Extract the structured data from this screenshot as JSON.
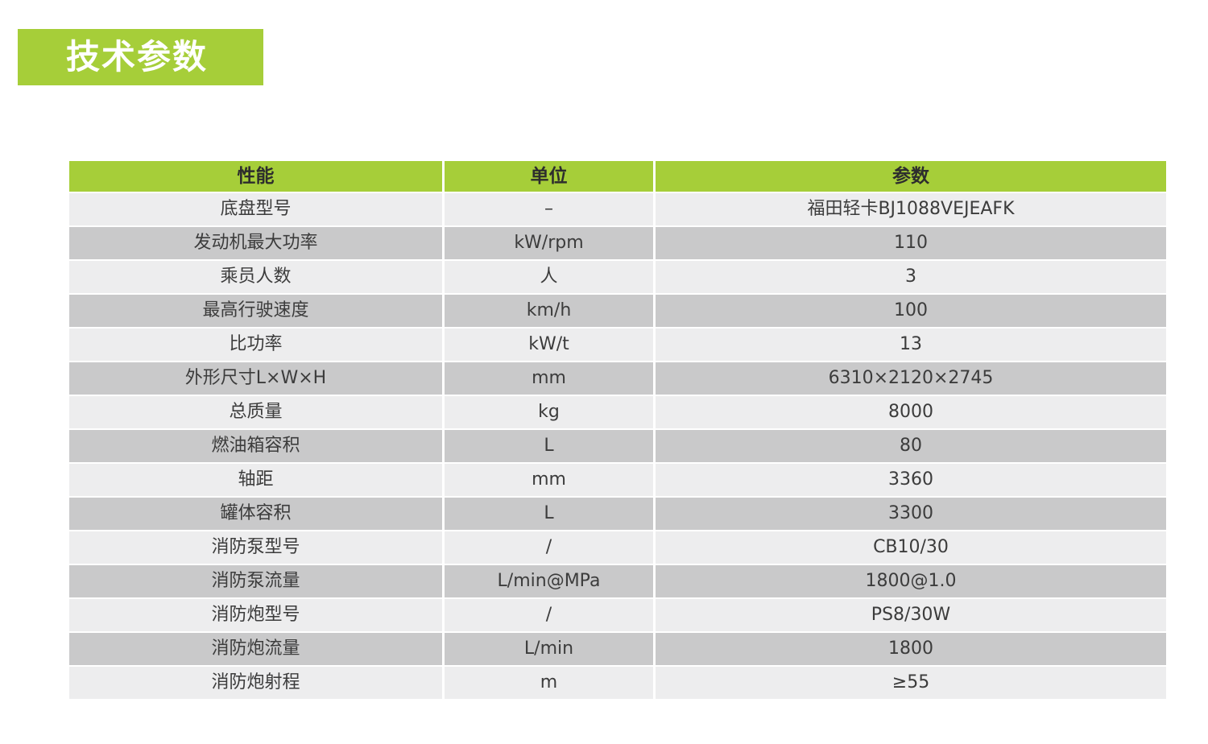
{
  "page_title": "技术参数",
  "colors": {
    "accent_green": "#a6ce39",
    "row_light": "#ededee",
    "row_gray": "#c9c9ca",
    "title_text": "#ffffff"
  },
  "table": {
    "headers": [
      "性能",
      "单位",
      "参数"
    ],
    "rows": [
      {
        "label": "底盘型号",
        "unit": "–",
        "value": "福田轻卡BJ1088VEJEAFK"
      },
      {
        "label": "发动机最大功率",
        "unit": "kW/rpm",
        "value": "110"
      },
      {
        "label": "乘员人数",
        "unit": "人",
        "value": "3"
      },
      {
        "label": "最高行驶速度",
        "unit": "km/h",
        "value": "100"
      },
      {
        "label": "比功率",
        "unit": "kW/t",
        "value": "13"
      },
      {
        "label": "外形尺寸L×W×H",
        "unit": "mm",
        "value": "6310×2120×2745"
      },
      {
        "label": "总质量",
        "unit": "kg",
        "value": "8000"
      },
      {
        "label": "燃油箱容积",
        "unit": "L",
        "value": "80"
      },
      {
        "label": "轴距",
        "unit": "mm",
        "value": "3360"
      },
      {
        "label": "罐体容积",
        "unit": "L",
        "value": "3300"
      },
      {
        "label": "消防泵型号",
        "unit": "/",
        "value": "CB10/30"
      },
      {
        "label": "消防泵流量",
        "unit": "L/min@MPa",
        "value": "1800@1.0"
      },
      {
        "label": "消防炮型号",
        "unit": "/",
        "value": "PS8/30W"
      },
      {
        "label": "消防炮流量",
        "unit": "L/min",
        "value": "1800"
      },
      {
        "label": "消防炮射程",
        "unit": "m",
        "value": "≥55"
      }
    ]
  }
}
